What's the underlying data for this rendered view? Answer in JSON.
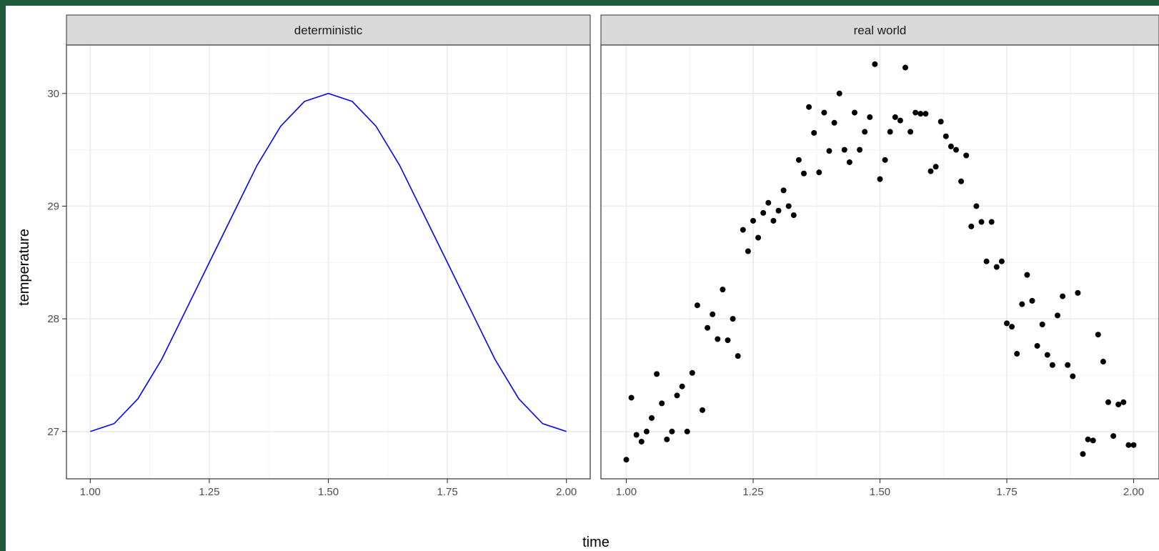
{
  "chart_data": {
    "type": "line",
    "xlabel": "time",
    "ylabel": "temperature",
    "xlim": [
      0.95,
      2.05
    ],
    "ylim": [
      26.58,
      30.43
    ],
    "x_ticks": [
      1.0,
      1.25,
      1.5,
      1.75,
      2.0
    ],
    "x_tick_labels": [
      "1.00",
      "1.25",
      "1.50",
      "1.75",
      "2.00"
    ],
    "y_ticks": [
      27,
      28,
      29,
      30
    ],
    "y_tick_labels": [
      "27",
      "28",
      "29",
      "30"
    ],
    "grid": true,
    "colors": {
      "line": "#0000ff",
      "points": "#000000"
    },
    "panels": [
      {
        "title": "deterministic",
        "type": "line",
        "x": [
          1.0,
          1.05,
          1.1,
          1.15,
          1.2,
          1.25,
          1.3,
          1.35,
          1.4,
          1.45,
          1.5,
          1.55,
          1.6,
          1.65,
          1.7,
          1.75,
          1.8,
          1.85,
          1.9,
          1.95,
          2.0
        ],
        "y": [
          27.0,
          27.07,
          27.29,
          27.64,
          28.07,
          28.5,
          28.93,
          29.36,
          29.71,
          29.93,
          30.0,
          29.93,
          29.71,
          29.36,
          28.93,
          28.5,
          28.07,
          27.64,
          27.29,
          27.07,
          27.0
        ]
      },
      {
        "title": "real world",
        "type": "scatter",
        "x": [
          1.0,
          1.01,
          1.02,
          1.03,
          1.04,
          1.05,
          1.06,
          1.07,
          1.08,
          1.09,
          1.1,
          1.11,
          1.12,
          1.13,
          1.14,
          1.15,
          1.16,
          1.17,
          1.18,
          1.19,
          1.2,
          1.21,
          1.22,
          1.23,
          1.24,
          1.25,
          1.26,
          1.27,
          1.28,
          1.29,
          1.3,
          1.31,
          1.32,
          1.33,
          1.34,
          1.35,
          1.36,
          1.37,
          1.38,
          1.39,
          1.4,
          1.41,
          1.42,
          1.43,
          1.44,
          1.45,
          1.46,
          1.47,
          1.48,
          1.49,
          1.5,
          1.51,
          1.52,
          1.53,
          1.54,
          1.55,
          1.56,
          1.57,
          1.58,
          1.59,
          1.6,
          1.61,
          1.62,
          1.63,
          1.64,
          1.65,
          1.66,
          1.67,
          1.68,
          1.69,
          1.7,
          1.71,
          1.72,
          1.73,
          1.74,
          1.75,
          1.76,
          1.77,
          1.78,
          1.79,
          1.8,
          1.81,
          1.82,
          1.83,
          1.84,
          1.85,
          1.86,
          1.87,
          1.88,
          1.89,
          1.9,
          1.91,
          1.92,
          1.93,
          1.94,
          1.95,
          1.96,
          1.97,
          1.98,
          1.99,
          2.0
        ],
        "y": [
          26.75,
          27.3,
          26.97,
          26.91,
          27.0,
          27.12,
          27.51,
          27.25,
          26.93,
          27.0,
          27.32,
          27.4,
          27.0,
          27.52,
          28.12,
          27.19,
          27.92,
          28.04,
          27.82,
          28.26,
          27.81,
          28.0,
          27.67,
          28.79,
          28.6,
          28.87,
          28.72,
          28.94,
          29.03,
          28.87,
          28.96,
          29.14,
          29.0,
          28.92,
          29.41,
          29.29,
          29.88,
          29.65,
          29.3,
          29.83,
          29.49,
          29.74,
          30.0,
          29.5,
          29.39,
          29.83,
          29.5,
          29.66,
          29.79,
          30.26,
          29.24,
          29.41,
          29.66,
          29.79,
          29.76,
          30.23,
          29.66,
          29.83,
          29.82,
          29.82,
          29.31,
          29.35,
          29.75,
          29.62,
          29.53,
          29.5,
          29.22,
          29.45,
          28.82,
          29.0,
          28.86,
          28.51,
          28.86,
          28.46,
          28.51,
          27.96,
          27.93,
          27.69,
          28.13,
          28.39,
          28.16,
          27.76,
          27.95,
          27.68,
          27.59,
          28.03,
          28.2,
          27.59,
          27.49,
          28.23,
          26.8,
          26.93,
          26.92,
          27.86,
          27.62,
          27.26,
          26.96,
          27.24,
          27.26,
          26.88,
          26.88
        ]
      }
    ]
  }
}
